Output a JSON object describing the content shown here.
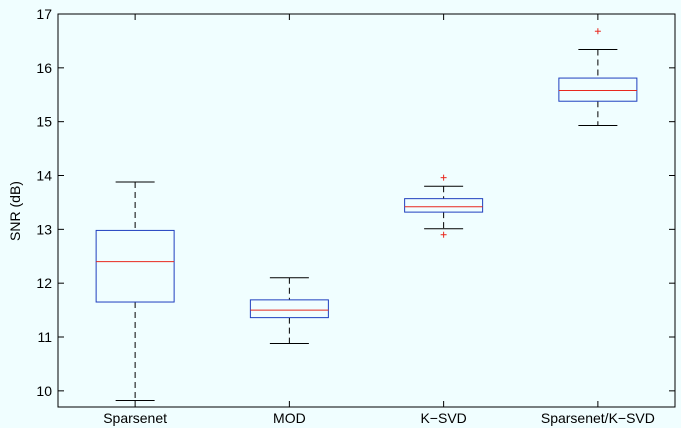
{
  "chart_data": {
    "type": "box",
    "title": "",
    "xlabel": "",
    "ylabel": "SNR (dB)",
    "ylim": [
      9.7,
      17
    ],
    "yticks": [
      10,
      11,
      12,
      13,
      14,
      15,
      16,
      17
    ],
    "categories": [
      "Sparsenet",
      "MOD",
      "K−SVD",
      "Sparsenet/K−SVD"
    ],
    "boxes": [
      {
        "name": "Sparsenet",
        "whisker_low": 9.82,
        "q1": 11.65,
        "median": 12.4,
        "q3": 12.98,
        "whisker_high": 13.88,
        "outliers": []
      },
      {
        "name": "MOD",
        "whisker_low": 10.88,
        "q1": 11.36,
        "median": 11.5,
        "q3": 11.69,
        "whisker_high": 12.1,
        "outliers": []
      },
      {
        "name": "K−SVD",
        "whisker_low": 13.01,
        "q1": 13.32,
        "median": 13.42,
        "q3": 13.57,
        "whisker_high": 13.8,
        "outliers": [
          12.9,
          13.96
        ]
      },
      {
        "name": "Sparsenet/K−SVD",
        "whisker_low": 14.93,
        "q1": 15.38,
        "median": 15.58,
        "q3": 15.81,
        "whisker_high": 16.34,
        "outliers": [
          16.68
        ]
      }
    ],
    "grid": false,
    "colors": {
      "box": "#1f3fbf",
      "median": "#e8291f",
      "whisker": "#000000",
      "outlier": "#e8291f",
      "background": "#f0feff"
    }
  }
}
